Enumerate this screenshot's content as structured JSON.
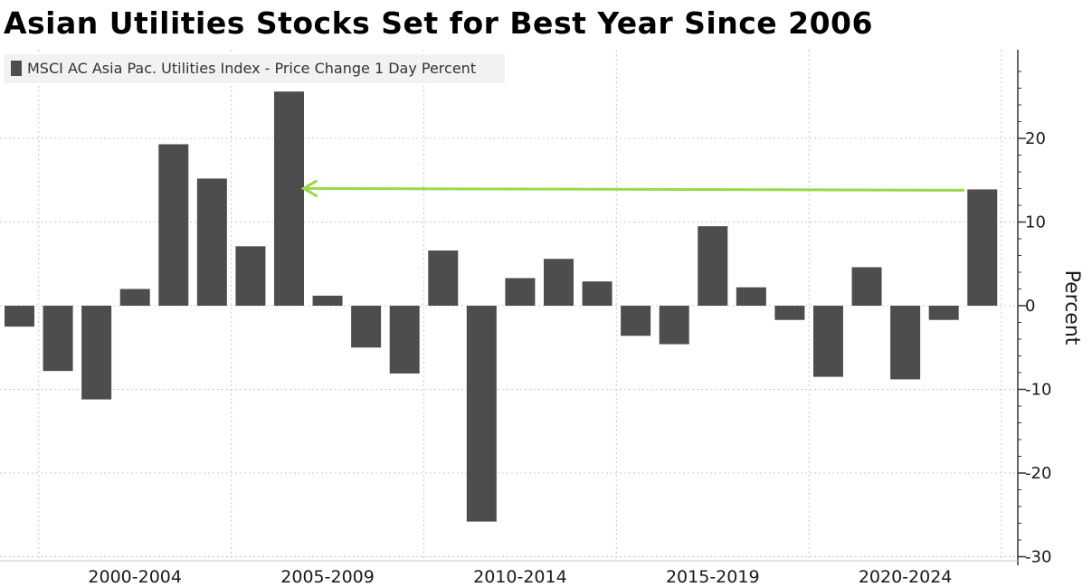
{
  "colors": {
    "bar": "#4d4d4d",
    "arrow": "#9ad94a",
    "grid": "#c8c8c8",
    "axis": "#333333"
  },
  "chart_data": {
    "type": "bar",
    "title": "Asian Utilities Stocks Set for Best Year Since 2006",
    "legend": [
      "MSCI AC Asia Pac. Utilities Index - Price Change 1 Day Percent"
    ],
    "legend_position": "top-left",
    "ylabel": "Percent",
    "ylim": [
      -30,
      28
    ],
    "yticks": [
      20,
      10,
      0,
      -10,
      -20,
      -30
    ],
    "grid": true,
    "x": [
      1999,
      2000,
      2001,
      2002,
      2003,
      2004,
      2005,
      2006,
      2007,
      2008,
      2009,
      2010,
      2011,
      2012,
      2013,
      2014,
      2015,
      2016,
      2017,
      2018,
      2019,
      2020,
      2021,
      2022,
      2023,
      2024
    ],
    "category_labels": [
      "2000-2004",
      "2005-2009",
      "2010-2014",
      "2015-2019",
      "2020-2024"
    ],
    "series": [
      {
        "name": "MSCI AC Asia Pac. Utilities Index - Price Change 1 Day Percent",
        "values": [
          -2.5,
          -7.8,
          -11.2,
          2.0,
          19.3,
          15.2,
          7.1,
          25.6,
          1.2,
          -5.0,
          -8.1,
          6.6,
          -25.8,
          3.3,
          5.6,
          2.9,
          -3.6,
          -4.6,
          9.5,
          2.2,
          -1.7,
          -8.5,
          4.6,
          -8.8,
          -1.7,
          13.9
        ]
      }
    ],
    "annotations": [
      {
        "type": "arrow",
        "from": {
          "x": 2024,
          "y": 13.8
        },
        "to": {
          "x": 2006,
          "y": 13.8
        }
      }
    ]
  }
}
